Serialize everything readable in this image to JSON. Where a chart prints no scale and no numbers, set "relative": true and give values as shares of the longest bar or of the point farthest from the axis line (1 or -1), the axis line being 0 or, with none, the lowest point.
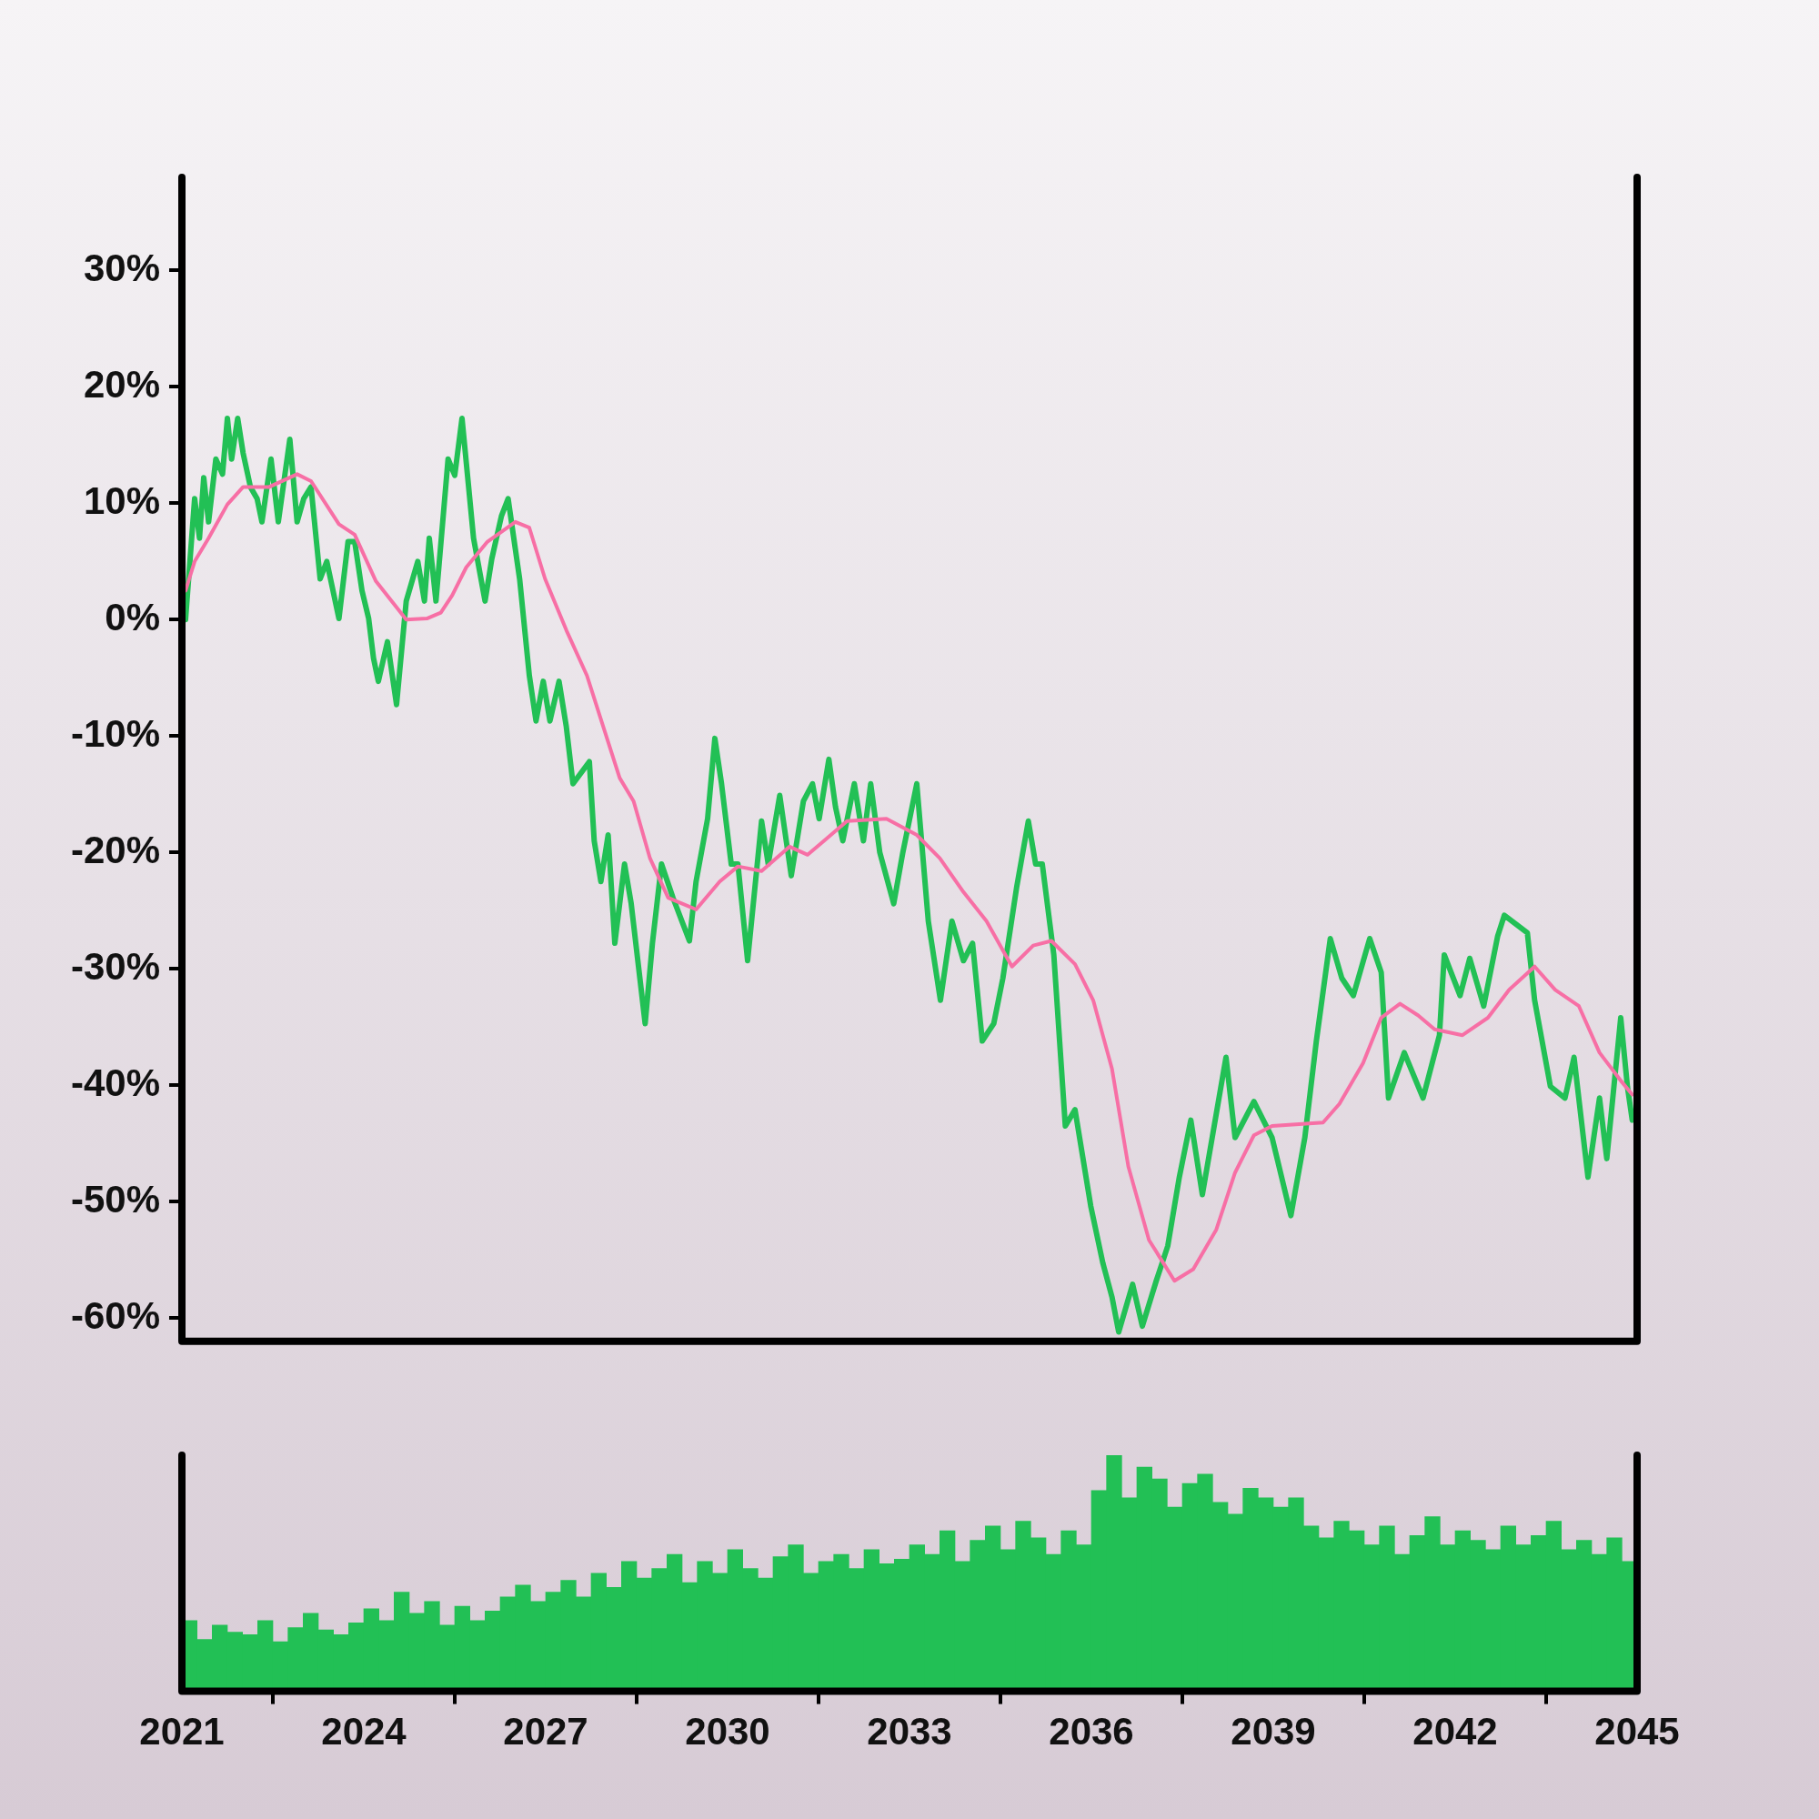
{
  "chart_data": [
    {
      "type": "line",
      "xlim": [
        2021,
        2045
      ],
      "xticks": [
        2021,
        2024,
        2027,
        2030,
        2033,
        2036,
        2039,
        2042,
        2045
      ],
      "ylim": [
        -62,
        38
      ],
      "yticks": [
        {
          "value": -60,
          "label": "-60%"
        },
        {
          "value": -50,
          "label": "-50%"
        },
        {
          "value": -40,
          "label": "-40%"
        },
        {
          "value": -30,
          "label": "-30%"
        },
        {
          "value": -20,
          "label": "-20%"
        },
        {
          "value": -10,
          "label": "-10%"
        },
        {
          "value": 0,
          "label": "0%"
        },
        {
          "value": 10,
          "label": "10%"
        },
        {
          "value": 20,
          "label": "20%"
        },
        {
          "value": 30,
          "label": "30%"
        }
      ],
      "tick_labels": "y",
      "series": [
        {
          "color": "#22c055",
          "x": [
            2021.06,
            2021.21,
            2021.29,
            2021.36,
            2021.44,
            2021.56,
            2021.67,
            2021.75,
            2021.82,
            2021.92,
            2022.01,
            2022.13,
            2022.24,
            2022.32,
            2022.47,
            2022.59,
            2022.78,
            2022.9,
            2023.01,
            2023.13,
            2023.28,
            2023.39,
            2023.59,
            2023.74,
            2023.85,
            2023.97,
            2024.08,
            2024.16,
            2024.24,
            2024.39,
            2024.54,
            2024.7,
            2024.89,
            2025.0,
            2025.08,
            2025.19,
            2025.39,
            2025.5,
            2025.62,
            2025.81,
            2026.0,
            2026.11,
            2026.27,
            2026.38,
            2026.57,
            2026.73,
            2026.84,
            2026.96,
            2027.07,
            2027.22,
            2027.34,
            2027.45,
            2027.72,
            2027.8,
            2027.91,
            2028.03,
            2028.14,
            2028.3,
            2028.41,
            2028.64,
            2028.76,
            2028.91,
            2029.1,
            2029.37,
            2029.48,
            2029.67,
            2029.79,
            2029.9,
            2030.06,
            2030.17,
            2030.33,
            2030.56,
            2030.67,
            2030.86,
            2031.05,
            2031.25,
            2031.4,
            2031.51,
            2031.67,
            2031.78,
            2031.9,
            2032.09,
            2032.24,
            2032.36,
            2032.51,
            2032.74,
            2032.89,
            2033.12,
            2033.31,
            2033.51,
            2033.7,
            2033.89,
            2034.04,
            2034.2,
            2034.39,
            2034.54,
            2034.77,
            2034.96,
            2035.08,
            2035.19,
            2035.38,
            2035.57,
            2035.73,
            2035.99,
            2036.19,
            2036.34,
            2036.45,
            2036.68,
            2036.84,
            2037.07,
            2037.26,
            2037.45,
            2037.64,
            2037.83,
            2038.22,
            2038.37,
            2038.68,
            2038.98,
            2039.29,
            2039.52,
            2039.71,
            2039.94,
            2040.13,
            2040.32,
            2040.59,
            2040.78,
            2040.9,
            2041.16,
            2041.47,
            2041.74,
            2041.82,
            2042.08,
            2042.24,
            2042.47,
            2042.7,
            2042.81,
            2043.19,
            2043.31,
            2043.57,
            2043.81,
            2043.96,
            2044.19,
            2044.38,
            2044.5,
            2044.73,
            2044.84,
            2044.92
          ],
          "values": [
            0,
            10.4,
            7.0,
            12.2,
            8.4,
            13.8,
            12.5,
            17.3,
            13.8,
            17.3,
            14.3,
            11.4,
            10.4,
            8.4,
            13.8,
            8.4,
            15.5,
            8.4,
            10.4,
            11.4,
            3.5,
            5.0,
            0.1,
            6.7,
            6.7,
            2.5,
            0.1,
            -3.3,
            -5.3,
            -1.9,
            -7.3,
            1.6,
            5.0,
            1.6,
            7.0,
            1.6,
            13.8,
            12.4,
            17.3,
            7.0,
            1.6,
            5.2,
            8.9,
            10.4,
            3.5,
            -4.8,
            -8.7,
            -5.3,
            -8.7,
            -5.3,
            -9.2,
            -14.1,
            -12.2,
            -19.0,
            -22.5,
            -18.5,
            -27.8,
            -21.0,
            -24.4,
            -34.7,
            -27.8,
            -21.0,
            -23.9,
            -27.6,
            -22.5,
            -17.1,
            -10.2,
            -14.1,
            -21.0,
            -21.0,
            -29.3,
            -17.3,
            -21.0,
            -15.1,
            -22.0,
            -15.6,
            -14.1,
            -17.1,
            -12.0,
            -16.1,
            -19.0,
            -14.1,
            -19.0,
            -14.1,
            -20.0,
            -24.4,
            -20.0,
            -14.1,
            -25.9,
            -32.7,
            -25.9,
            -29.3,
            -27.8,
            -36.2,
            -34.7,
            -30.8,
            -22.9,
            -17.3,
            -21.0,
            -21.0,
            -28.8,
            -43.5,
            -42.1,
            -50.4,
            -55.3,
            -58.2,
            -61.2,
            -57.1,
            -60.7,
            -56.8,
            -53.8,
            -47.9,
            -43.0,
            -49.4,
            -37.6,
            -44.5,
            -41.4,
            -44.5,
            -51.2,
            -44.5,
            -36.2,
            -27.4,
            -30.8,
            -32.3,
            -27.4,
            -30.3,
            -41.1,
            -37.2,
            -41.1,
            -35.7,
            -28.8,
            -32.3,
            -29.1,
            -33.2,
            -27.2,
            -25.4,
            -26.9,
            -32.7,
            -40.1,
            -41.1,
            -37.6,
            -47.9,
            -41.1,
            -46.3,
            -34.2,
            -40.1,
            -43.0
          ]
        },
        {
          "color": "#f76fa5",
          "x": [
            2021.06,
            2021.21,
            2021.44,
            2021.75,
            2022.01,
            2022.44,
            2022.9,
            2023.13,
            2023.59,
            2023.85,
            2024.2,
            2024.7,
            2025.04,
            2025.27,
            2025.46,
            2025.69,
            2026.04,
            2026.5,
            2026.73,
            2026.99,
            2027.34,
            2027.68,
            2027.95,
            2028.22,
            2028.45,
            2028.72,
            2029.02,
            2029.48,
            2029.87,
            2030.17,
            2030.56,
            2031.02,
            2031.32,
            2031.59,
            2031.97,
            2032.62,
            2033.12,
            2033.5,
            2033.89,
            2034.27,
            2034.69,
            2035.04,
            2035.34,
            2035.73,
            2036.03,
            2036.34,
            2036.61,
            2036.95,
            2037.37,
            2037.68,
            2038.06,
            2038.37,
            2038.68,
            2038.98,
            2039.82,
            2040.09,
            2040.48,
            2040.78,
            2041.09,
            2041.39,
            2041.66,
            2042.12,
            2042.54,
            2042.89,
            2043.31,
            2043.65,
            2044.04,
            2044.38,
            2044.73,
            2044.92
          ],
          "values": [
            2.5,
            5.0,
            7.0,
            9.9,
            11.4,
            11.4,
            12.5,
            11.9,
            8.2,
            7.3,
            3.3,
            0,
            0.1,
            0.6,
            2.1,
            4.5,
            6.7,
            8.4,
            7.9,
            3.5,
            -0.9,
            -4.8,
            -9.2,
            -13.6,
            -15.6,
            -20.5,
            -23.9,
            -24.9,
            -22.5,
            -21.2,
            -21.6,
            -19.5,
            -20.2,
            -19.0,
            -17.3,
            -17.1,
            -18.5,
            -20.5,
            -23.4,
            -25.9,
            -29.8,
            -28.0,
            -27.6,
            -29.6,
            -32.7,
            -38.6,
            -47.0,
            -53.3,
            -56.8,
            -55.8,
            -52.4,
            -47.5,
            -44.3,
            -43.5,
            -43.2,
            -41.6,
            -38.1,
            -34.2,
            -33.0,
            -34.0,
            -35.2,
            -35.7,
            -34.2,
            -31.8,
            -29.8,
            -31.8,
            -33.2,
            -37.2,
            -39.6,
            -40.8
          ]
        }
      ]
    },
    {
      "type": "bar",
      "relative": true,
      "color": "#22c055",
      "xlim": [
        2021,
        2045
      ],
      "xticks": [
        2021,
        2024,
        2027,
        2030,
        2033,
        2036,
        2039,
        2042,
        2045
      ],
      "x": [
        2021.125,
        2021.375,
        2021.625,
        2021.875,
        2022.125,
        2022.375,
        2022.625,
        2022.875,
        2023.125,
        2023.375,
        2023.625,
        2023.875,
        2024.125,
        2024.375,
        2024.625,
        2024.875,
        2025.125,
        2025.375,
        2025.625,
        2025.875,
        2026.125,
        2026.375,
        2026.625,
        2026.875,
        2027.125,
        2027.375,
        2027.625,
        2027.875,
        2028.125,
        2028.375,
        2028.625,
        2028.875,
        2029.125,
        2029.375,
        2029.625,
        2029.875,
        2030.125,
        2030.375,
        2030.625,
        2030.875,
        2031.125,
        2031.375,
        2031.625,
        2031.875,
        2032.125,
        2032.375,
        2032.625,
        2032.875,
        2033.125,
        2033.375,
        2033.625,
        2033.875,
        2034.125,
        2034.375,
        2034.625,
        2034.875,
        2035.125,
        2035.375,
        2035.625,
        2035.875,
        2036.125,
        2036.375,
        2036.625,
        2036.875,
        2037.125,
        2037.375,
        2037.625,
        2037.875,
        2038.125,
        2038.375,
        2038.625,
        2038.875,
        2039.125,
        2039.375,
        2039.625,
        2039.875,
        2040.125,
        2040.375,
        2040.625,
        2040.875,
        2041.125,
        2041.375,
        2041.625,
        2041.875,
        2042.125,
        2042.375,
        2042.625,
        2042.875,
        2043.125,
        2043.375,
        2043.625,
        2043.875,
        2044.125,
        2044.375,
        2044.625,
        2044.875
      ],
      "values": [
        0.3,
        0.22,
        0.28,
        0.25,
        0.24,
        0.3,
        0.21,
        0.27,
        0.33,
        0.26,
        0.24,
        0.29,
        0.35,
        0.3,
        0.42,
        0.33,
        0.38,
        0.28,
        0.36,
        0.3,
        0.34,
        0.4,
        0.45,
        0.38,
        0.42,
        0.47,
        0.4,
        0.5,
        0.44,
        0.55,
        0.48,
        0.52,
        0.58,
        0.46,
        0.55,
        0.5,
        0.6,
        0.52,
        0.48,
        0.57,
        0.62,
        0.5,
        0.55,
        0.58,
        0.52,
        0.6,
        0.54,
        0.56,
        0.62,
        0.58,
        0.68,
        0.55,
        0.64,
        0.7,
        0.6,
        0.72,
        0.65,
        0.58,
        0.68,
        0.62,
        0.85,
        1.0,
        0.82,
        0.95,
        0.9,
        0.78,
        0.88,
        0.92,
        0.8,
        0.75,
        0.86,
        0.82,
        0.78,
        0.82,
        0.7,
        0.65,
        0.72,
        0.68,
        0.62,
        0.7,
        0.58,
        0.66,
        0.74,
        0.62,
        0.68,
        0.64,
        0.6,
        0.7,
        0.62,
        0.66,
        0.72,
        0.6,
        0.64,
        0.58,
        0.65,
        0.55
      ]
    }
  ]
}
